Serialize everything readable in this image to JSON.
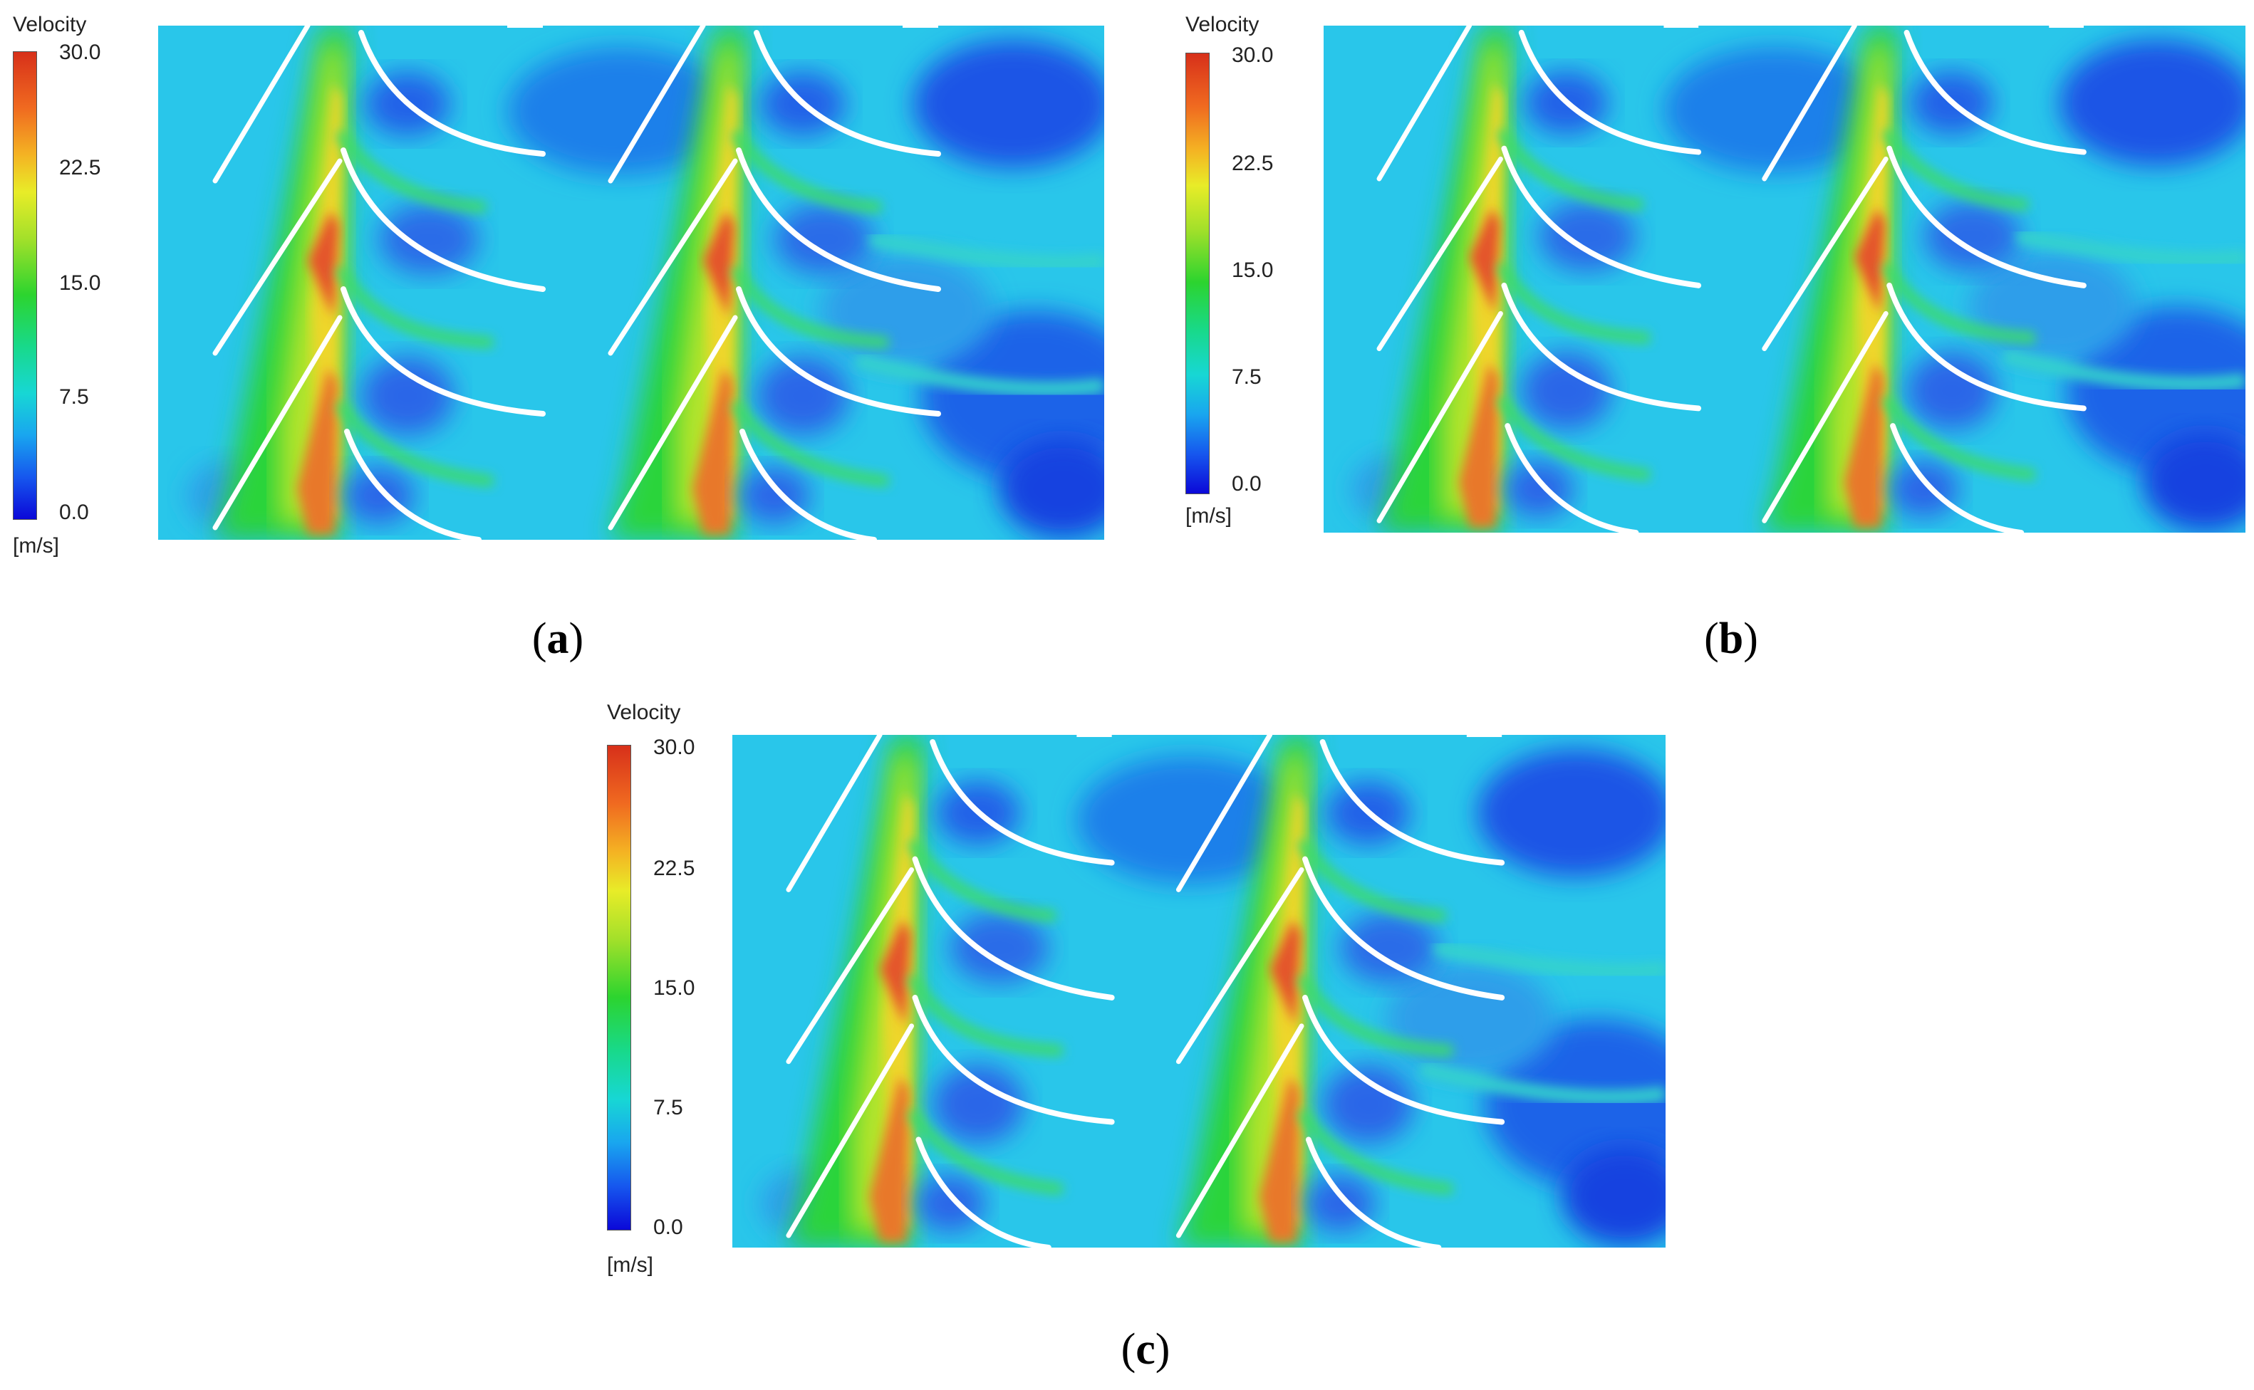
{
  "panels": [
    {
      "id": "a",
      "colorbar": {
        "title": "Velocity",
        "ticks": [
          "30.0",
          "22.5",
          "15.0",
          "7.5",
          "0.0"
        ],
        "unit": "[m/s]",
        "min": 0.0,
        "max": 30.0
      },
      "caption_open": "(",
      "caption_letter": "a",
      "caption_close": ")"
    },
    {
      "id": "b",
      "colorbar": {
        "title": "Velocity",
        "ticks": [
          "30.0",
          "22.5",
          "15.0",
          "7.5",
          "0.0"
        ],
        "unit": "[m/s]",
        "min": 0.0,
        "max": 30.0
      },
      "caption_open": "(",
      "caption_letter": "b",
      "caption_close": ")"
    },
    {
      "id": "c",
      "colorbar": {
        "title": "Velocity",
        "ticks": [
          "30.0",
          "22.5",
          "15.0",
          "7.5",
          "0.0"
        ],
        "unit": "[m/s]",
        "min": 0.0,
        "max": 30.0
      },
      "caption_open": "(",
      "caption_letter": "c",
      "caption_close": ")"
    }
  ],
  "colors": {
    "background_flow": "#29c6ea",
    "low_velocity": "#1a4fe8",
    "mid_velocity": "#2bd43a",
    "high_velocity": "#e8e628",
    "peak_velocity": "#e2431c",
    "blade": "#ffffff"
  }
}
